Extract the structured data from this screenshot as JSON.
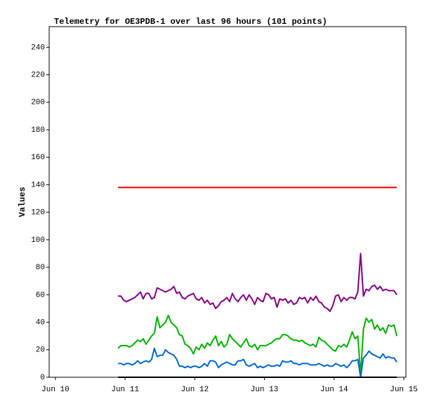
{
  "chart_data": {
    "type": "line",
    "title": "Telemetry for OE3PDB-1 over last 96 hours (101 points)",
    "y_label": "Values",
    "xlim": [
      -0.09,
      5.03
    ],
    "xticks": [
      {
        "value": 0,
        "label": "Jun 10"
      },
      {
        "value": 1,
        "label": "Jun 11"
      },
      {
        "value": 2,
        "label": "Jun 12"
      },
      {
        "value": 3,
        "label": "Jun 13"
      },
      {
        "value": 4,
        "label": "Jun 14"
      },
      {
        "value": 5,
        "label": "Jun 15"
      }
    ],
    "ylim": [
      0,
      255
    ],
    "yticks": [
      0,
      20,
      40,
      60,
      80,
      100,
      120,
      140,
      160,
      180,
      200,
      220,
      240
    ],
    "x": [
      0.9,
      0.94,
      0.98,
      1.02,
      1.06,
      1.1,
      1.14,
      1.18,
      1.22,
      1.26,
      1.3,
      1.34,
      1.38,
      1.42,
      1.46,
      1.5,
      1.54,
      1.58,
      1.62,
      1.66,
      1.7,
      1.74,
      1.78,
      1.82,
      1.86,
      1.9,
      1.94,
      1.98,
      2.02,
      2.06,
      2.1,
      2.14,
      2.18,
      2.22,
      2.26,
      2.3,
      2.34,
      2.38,
      2.42,
      2.46,
      2.5,
      2.54,
      2.58,
      2.62,
      2.66,
      2.7,
      2.74,
      2.78,
      2.82,
      2.86,
      2.9,
      2.94,
      2.98,
      3.02,
      3.06,
      3.1,
      3.14,
      3.18,
      3.22,
      3.26,
      3.3,
      3.34,
      3.38,
      3.42,
      3.46,
      3.5,
      3.54,
      3.58,
      3.62,
      3.66,
      3.7,
      3.74,
      3.78,
      3.82,
      3.86,
      3.9,
      3.94,
      3.98,
      4.02,
      4.06,
      4.1,
      4.14,
      4.18,
      4.22,
      4.26,
      4.3,
      4.34,
      4.38,
      4.42,
      4.46,
      4.5,
      4.54,
      4.58,
      4.62,
      4.66,
      4.7,
      4.74,
      4.78,
      4.82,
      4.86,
      4.9
    ],
    "series": [
      {
        "color": "#e00000",
        "values": [
          138,
          138,
          138,
          138,
          138,
          138,
          138,
          138,
          138,
          138,
          138,
          138,
          138,
          138,
          138,
          138,
          138,
          138,
          138,
          138,
          138,
          138,
          138,
          138,
          138,
          138,
          138,
          138,
          138,
          138,
          138,
          138,
          138,
          138,
          138,
          138,
          138,
          138,
          138,
          138,
          138,
          138,
          138,
          138,
          138,
          138,
          138,
          138,
          138,
          138,
          138,
          138,
          138,
          138,
          138,
          138,
          138,
          138,
          138,
          138,
          138,
          138,
          138,
          138,
          138,
          138,
          138,
          138,
          138,
          138,
          138,
          138,
          138,
          138,
          138,
          138,
          138,
          138,
          138,
          138,
          138,
          138,
          138,
          138,
          138,
          138,
          138,
          138,
          138,
          138,
          138,
          138,
          138,
          138,
          138,
          138,
          138,
          138,
          138,
          138,
          138
        ]
      },
      {
        "color": "#800080",
        "values": [
          59,
          59,
          56,
          55,
          56,
          57,
          58,
          60,
          62,
          57,
          61,
          61,
          57,
          58,
          65,
          64,
          63,
          62,
          63,
          64,
          66,
          61,
          62,
          58,
          57,
          59,
          60,
          61,
          57,
          56,
          58,
          54,
          56,
          53,
          54,
          50,
          52,
          55,
          56,
          58,
          55,
          61,
          57,
          55,
          58,
          60,
          56,
          60,
          57,
          53,
          58,
          56,
          55,
          61,
          60,
          57,
          58,
          51,
          57,
          56,
          57,
          54,
          56,
          53,
          54,
          58,
          57,
          58,
          54,
          58,
          56,
          59,
          55,
          54,
          51,
          50,
          48,
          52,
          59,
          60,
          55,
          58,
          56,
          58,
          58,
          57,
          62,
          90,
          59,
          64,
          63,
          66,
          67,
          64,
          66,
          63,
          64,
          63,
          63,
          63,
          60
        ]
      },
      {
        "color": "#00b000",
        "values": [
          21,
          23,
          23,
          23,
          22,
          23,
          25,
          27,
          26,
          28,
          24,
          27,
          30,
          32,
          44,
          36,
          38,
          40,
          45,
          40,
          38,
          36,
          31,
          30,
          24,
          23,
          21,
          17,
          22,
          20,
          24,
          21,
          25,
          23,
          27,
          30,
          23,
          26,
          22,
          24,
          31,
          28,
          26,
          24,
          22,
          25,
          28,
          23,
          22,
          24,
          20,
          23,
          23,
          23,
          24,
          25,
          27,
          28,
          28,
          31,
          31,
          30,
          28,
          27,
          27,
          26,
          27,
          25,
          24,
          23,
          24,
          22,
          29,
          27,
          26,
          24,
          22,
          20,
          19,
          23,
          22,
          24,
          22,
          27,
          33,
          28,
          30,
          2,
          35,
          43,
          40,
          42,
          35,
          38,
          34,
          36,
          32,
          38,
          37,
          38,
          30
        ]
      },
      {
        "color": "#0066cc",
        "values": [
          10,
          10,
          9,
          10,
          10,
          9,
          10,
          12,
          10,
          11,
          12,
          11,
          13,
          21,
          15,
          16,
          16,
          20,
          18,
          17,
          16,
          13,
          8,
          8,
          7,
          8,
          7,
          8,
          8,
          7,
          8,
          10,
          8,
          12,
          12,
          11,
          7,
          9,
          10,
          11,
          10,
          9,
          9,
          12,
          12,
          13,
          9,
          8,
          9,
          10,
          7,
          8,
          7,
          8,
          9,
          8,
          8,
          9,
          8,
          12,
          11,
          11,
          12,
          10,
          10,
          9,
          10,
          10,
          10,
          9,
          9,
          9,
          10,
          9,
          8,
          9,
          8,
          8,
          10,
          9,
          8,
          9,
          7,
          9,
          12,
          12,
          13,
          0,
          14,
          16,
          19,
          17,
          16,
          15,
          14,
          17,
          14,
          15,
          14,
          14,
          11
        ]
      },
      {
        "color": "#000000",
        "values": [
          0,
          0,
          0,
          0,
          0,
          0,
          0,
          0,
          0,
          0,
          0,
          0,
          0,
          0,
          0,
          0,
          0,
          0,
          0,
          0,
          0,
          0,
          0,
          0,
          0,
          0,
          0,
          0,
          0,
          0,
          0,
          0,
          0,
          0,
          0,
          0,
          0,
          0,
          0,
          0,
          0,
          0,
          0,
          0,
          0,
          0,
          0,
          0,
          0,
          0,
          0,
          0,
          0,
          0,
          0,
          0,
          0,
          0,
          0,
          0,
          0,
          0,
          0,
          0,
          0,
          0,
          0,
          0,
          0,
          0,
          0,
          0,
          0,
          0,
          0,
          0,
          0,
          0,
          0,
          0,
          0,
          0,
          0,
          0,
          0,
          0,
          0,
          0,
          0,
          0,
          0,
          0,
          0,
          0,
          0,
          0,
          0,
          0,
          0,
          0,
          0
        ]
      }
    ]
  }
}
